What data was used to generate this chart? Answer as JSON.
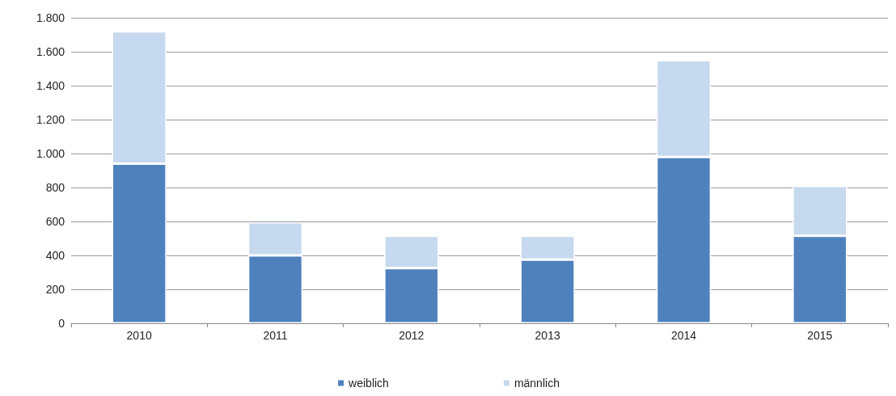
{
  "chart_data": {
    "type": "bar",
    "stacked": true,
    "categories": [
      "2010",
      "2011",
      "2012",
      "2013",
      "2014",
      "2015"
    ],
    "series": [
      {
        "name": "weiblich",
        "color": "#4f81bd",
        "values": [
          940,
          400,
          325,
          375,
          980,
          515
        ]
      },
      {
        "name": "männlich",
        "color": "#c6d9ee",
        "values": [
          780,
          195,
          190,
          140,
          570,
          295
        ]
      }
    ],
    "ylim": [
      0,
      1800
    ],
    "yticks": [
      0,
      200,
      400,
      600,
      800,
      {
        "value": 1000,
        "label": "1.000"
      },
      {
        "value": 1200,
        "label": "1.200"
      },
      {
        "value": 1400,
        "label": "1.400"
      },
      {
        "value": 1600,
        "label": "1.600"
      },
      {
        "value": 1800,
        "label": "1.800"
      }
    ],
    "grid": "y",
    "legend": "bottom"
  }
}
